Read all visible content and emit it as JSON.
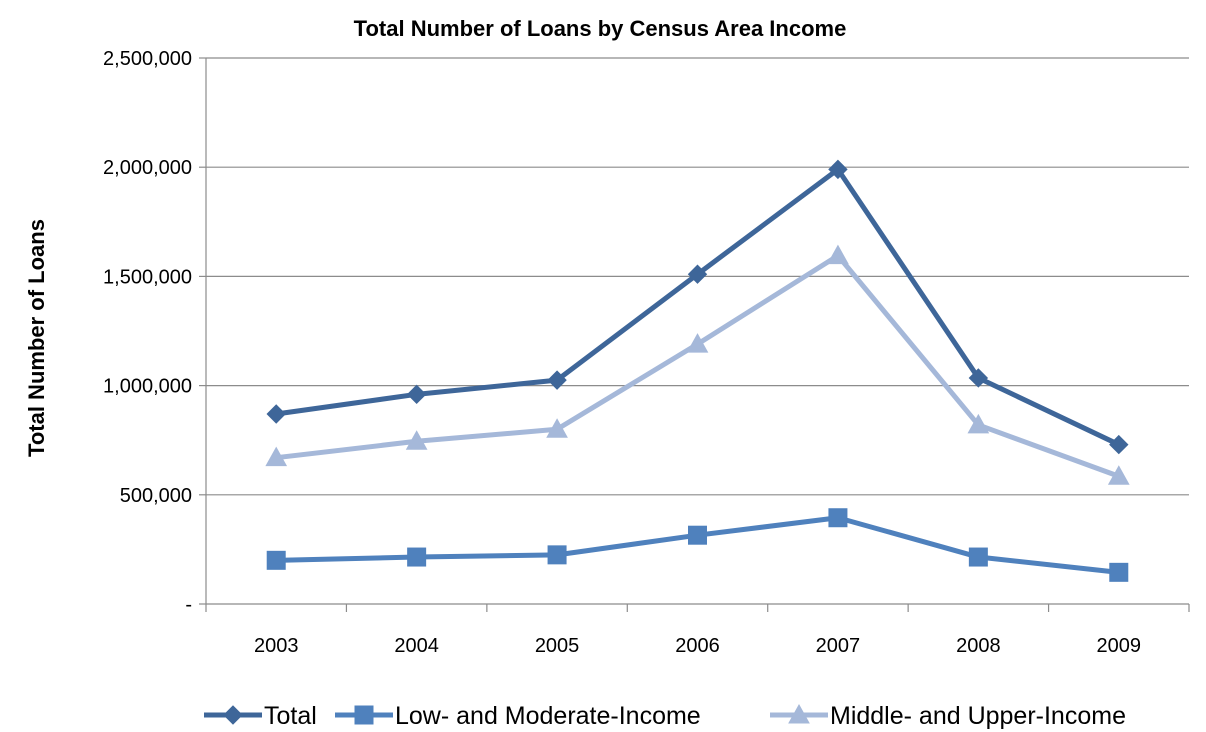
{
  "chart_data": {
    "type": "line",
    "title": "Total Number of Loans by Census Area Income",
    "xlabel": "",
    "ylabel": "Total Number of Loans",
    "categories": [
      "2003",
      "2004",
      "2005",
      "2006",
      "2007",
      "2008",
      "2009"
    ],
    "ylim": [
      0,
      2500000
    ],
    "yticks": [
      0,
      500000,
      1000000,
      1500000,
      2000000,
      2500000
    ],
    "ytick_labels": [
      "-",
      "500,000",
      "1,000,000",
      "1,500,000",
      "2,000,000",
      "2,500,000"
    ],
    "grid": true,
    "legend_position": "bottom",
    "series": [
      {
        "name": "Total",
        "values": [
          870000,
          960000,
          1025000,
          1510000,
          1990000,
          1035000,
          730000
        ],
        "color": "#3E6699",
        "marker": "diamond"
      },
      {
        "name": "Low- and Moderate-Income",
        "values": [
          200000,
          215000,
          225000,
          315000,
          395000,
          215000,
          145000
        ],
        "color": "#4F81BD",
        "marker": "square"
      },
      {
        "name": "Middle- and Upper-Income",
        "values": [
          670000,
          745000,
          800000,
          1190000,
          1595000,
          820000,
          585000
        ],
        "color": "#A5B8D9",
        "marker": "triangle"
      }
    ]
  }
}
